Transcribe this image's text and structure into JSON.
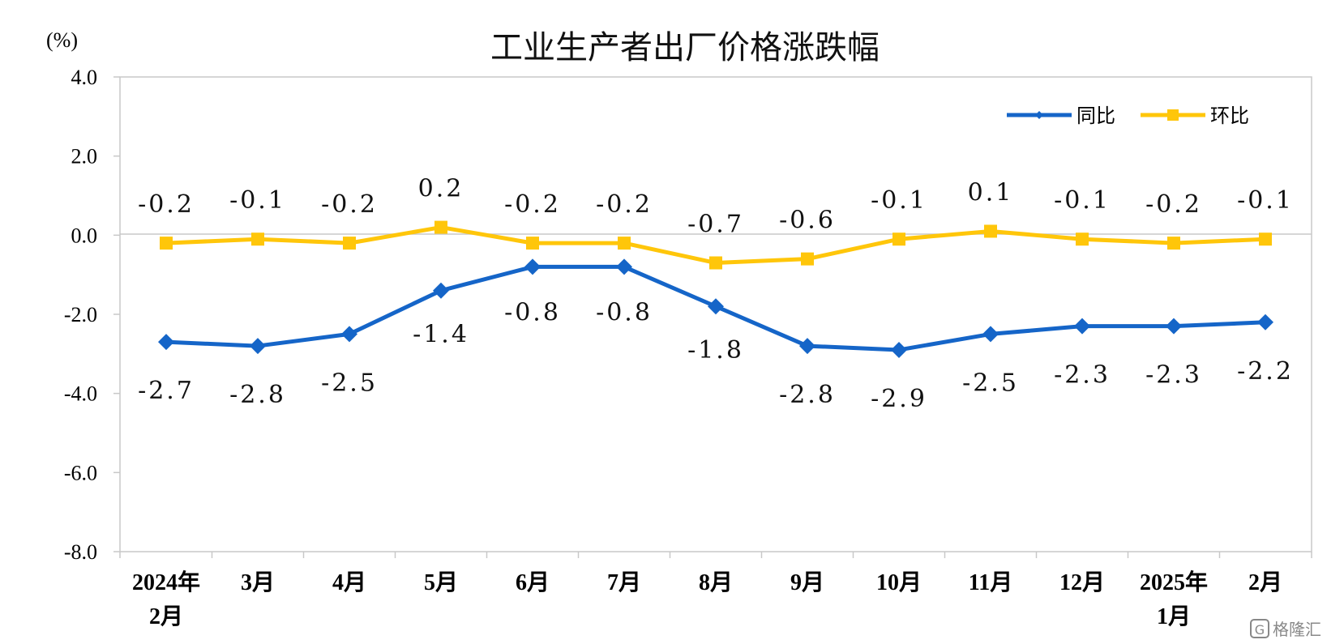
{
  "chart_data": {
    "type": "line",
    "title": "工业生产者出厂价格涨跌幅",
    "unit_label": "(%)",
    "categories": [
      [
        "2024年",
        "2月"
      ],
      [
        "3月"
      ],
      [
        "4月"
      ],
      [
        "5月"
      ],
      [
        "6月"
      ],
      [
        "7月"
      ],
      [
        "8月"
      ],
      [
        "9月"
      ],
      [
        "10月"
      ],
      [
        "11月"
      ],
      [
        "12月"
      ],
      [
        "2025年",
        "1月"
      ],
      [
        "2月"
      ]
    ],
    "ylim": [
      -8.0,
      4.0
    ],
    "yticks": [
      "4.0",
      "2.0",
      "0.0",
      "-2.0",
      "-4.0",
      "-6.0",
      "-8.0"
    ],
    "ytick_values": [
      4,
      2,
      0,
      -2,
      -4,
      -6,
      -8
    ],
    "legend_position": "top-right",
    "series": [
      {
        "name": "同比",
        "color": "#1565C8",
        "marker": "diamond",
        "values": [
          -2.7,
          -2.8,
          -2.5,
          -1.4,
          -0.8,
          -0.8,
          -1.8,
          -2.8,
          -2.9,
          -2.5,
          -2.3,
          -2.3,
          -2.2
        ],
        "labels": [
          "-2.7",
          "-2.8",
          "-2.5",
          "-1.4",
          "-0.8",
          "-0.8",
          "-1.8",
          "-2.8",
          "-2.9",
          "-2.5",
          "-2.3",
          "-2.3",
          "-2.2"
        ]
      },
      {
        "name": "环比",
        "color": "#FFC60A",
        "marker": "square",
        "values": [
          -0.2,
          -0.1,
          -0.2,
          0.2,
          -0.2,
          -0.2,
          -0.7,
          -0.6,
          -0.1,
          0.1,
          -0.1,
          -0.2,
          -0.1
        ],
        "labels": [
          "-0.2",
          "-0.1",
          "-0.2",
          "0.2",
          "-0.2",
          "-0.2",
          "-0.7",
          "-0.6",
          "-0.1",
          "0.1",
          "-0.1",
          "-0.2",
          "-0.1"
        ]
      }
    ]
  },
  "watermark": "格隆汇",
  "watermark_icon": "G"
}
